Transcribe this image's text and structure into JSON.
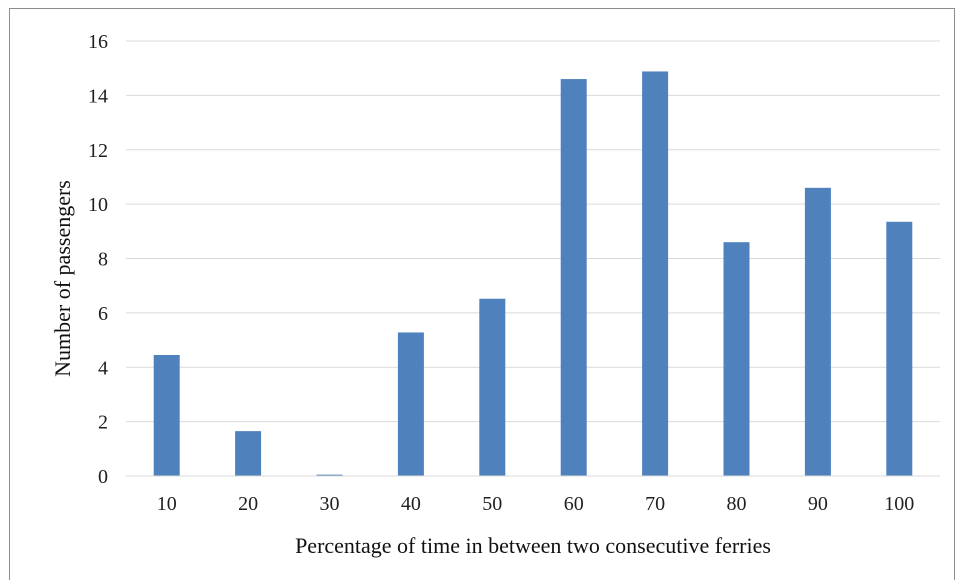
{
  "chart_data": {
    "type": "bar",
    "categories": [
      "10",
      "20",
      "30",
      "40",
      "50",
      "60",
      "70",
      "80",
      "90",
      "100"
    ],
    "values": [
      4.45,
      1.65,
      0.05,
      5.28,
      6.52,
      14.6,
      14.88,
      8.6,
      10.6,
      9.35
    ],
    "title": "",
    "xlabel": "Percentage of time in between two consecutive ferries",
    "ylabel": "Number of passengers",
    "ylim": [
      0,
      16
    ],
    "yticks": [
      "0",
      "2",
      "4",
      "6",
      "8",
      "10",
      "12",
      "14",
      "16"
    ],
    "grid": true,
    "legend": "none",
    "bar_color": "#4f81bd",
    "grid_color": "#d9d9d9"
  }
}
